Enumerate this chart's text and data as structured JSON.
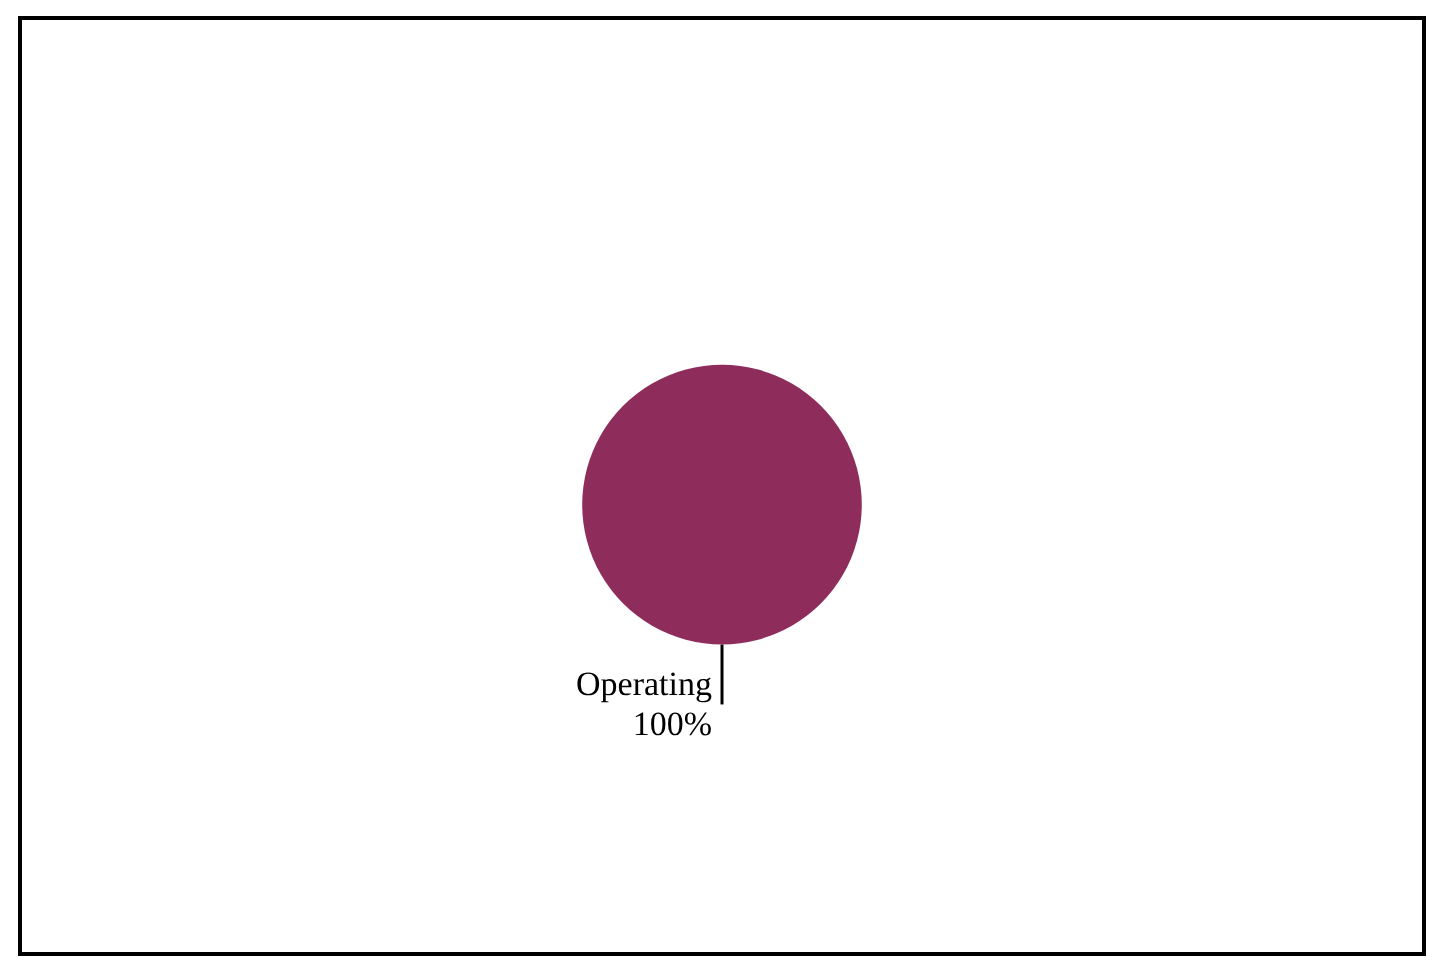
{
  "chart_data": {
    "type": "pie",
    "categories": [
      "Operating"
    ],
    "values": [
      100
    ],
    "colors": [
      "#8e2d5c"
    ],
    "value_labels": [
      "100%"
    ],
    "legend": false
  }
}
